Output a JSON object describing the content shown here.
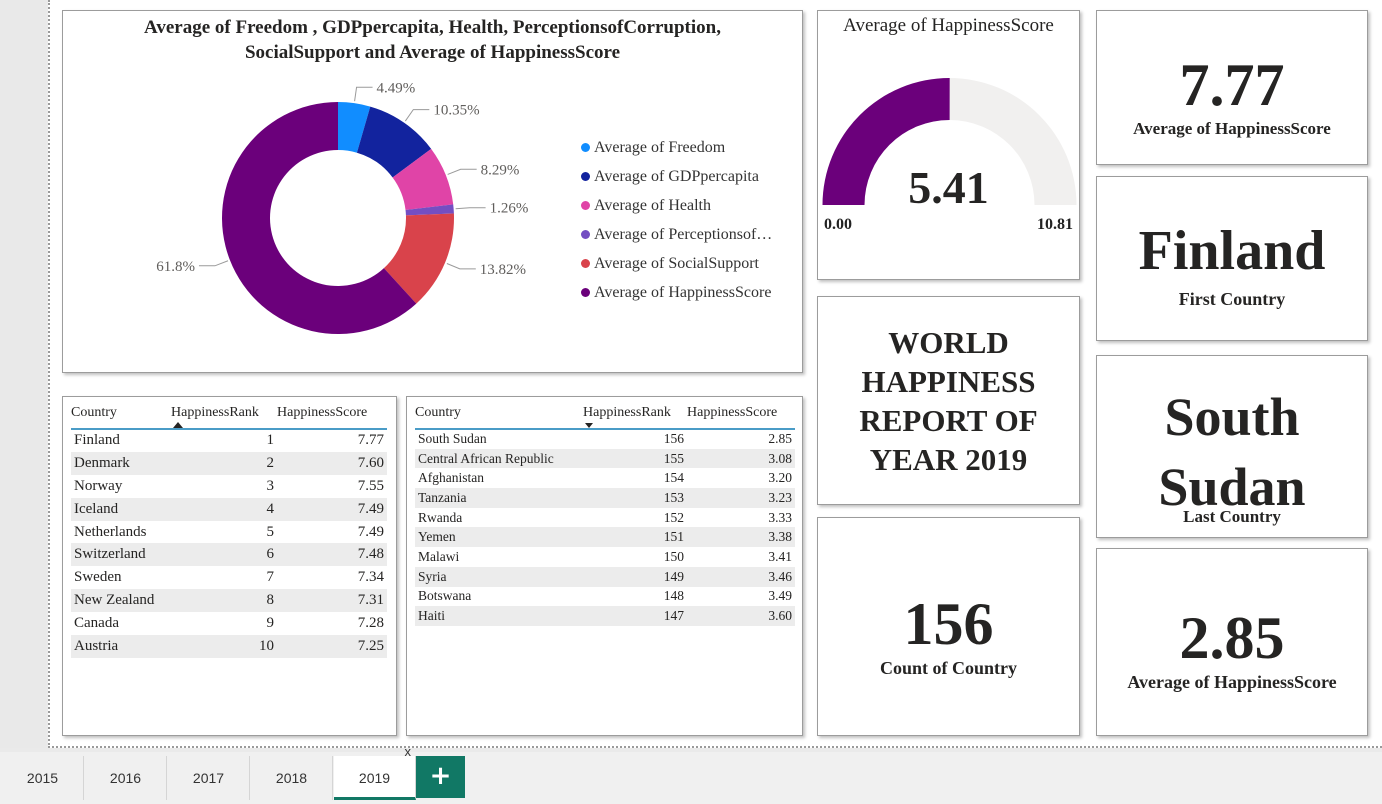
{
  "donut": {
    "title_line1": "Average of Freedom , GDPpercapita, Health, PerceptionsofCorruption,",
    "title_line2": "SocialSupport and Average of HappinessScore",
    "legend": [
      {
        "label": "Average of Freedom",
        "color": "#118dff"
      },
      {
        "label": "Average of GDPpercapita",
        "color": "#12239e"
      },
      {
        "label": "Average of Health",
        "color": "#e044a7"
      },
      {
        "label": "Average of Perceptionsof…",
        "color": "#744ec2"
      },
      {
        "label": "Average of SocialSupport",
        "color": "#d9434b"
      },
      {
        "label": "Average of HappinessScore",
        "color": "#6b007b"
      }
    ]
  },
  "chart_data": {
    "type": "pie",
    "title": "Average of Freedom , GDPpercapita, Health, PerceptionsofCorruption, SocialSupport and Average of HappinessScore",
    "categories": [
      "Average of Freedom",
      "Average of GDPpercapita",
      "Average of Health",
      "Average of Perceptionsof…",
      "Average of SocialSupport",
      "Average of HappinessScore"
    ],
    "values": [
      4.49,
      10.35,
      8.29,
      1.26,
      13.82,
      61.8
    ],
    "labels": [
      "4.49%",
      "10.35%",
      "8.29%",
      "1.26%",
      "13.82%",
      "61.8%"
    ],
    "colors": [
      "#118dff",
      "#12239e",
      "#e044a7",
      "#744ec2",
      "#d9434b",
      "#6b007b"
    ],
    "legend": "right"
  },
  "gauge": {
    "title": "Average of HappinessScore",
    "value_label": "5.41",
    "value": 5.41,
    "min_label": "0.00",
    "max_label": "10.81",
    "min": 0,
    "max": 10.81,
    "fill_color": "#6b007b",
    "track_color": "#f1f0ef"
  },
  "kpis": {
    "top_score": {
      "value": "7.77",
      "label": "Average of HappinessScore"
    },
    "first_country": {
      "value": "Finland",
      "label": "First Country"
    },
    "report_title": {
      "line1": "WORLD",
      "line2": "HAPPINESS",
      "line3": "REPORT OF",
      "line4": "YEAR 2019"
    },
    "last_country": {
      "line1": "South",
      "line2": "Sudan",
      "label": "Last Country"
    },
    "count": {
      "value": "156",
      "label": "Count of Country"
    },
    "bottom_score": {
      "value": "2.85",
      "label": "Average of HappinessScore"
    }
  },
  "top_table": {
    "headers": [
      "Country",
      "HappinessRank",
      "HappinessScore"
    ],
    "rows": [
      [
        "Finland",
        "1",
        "7.77"
      ],
      [
        "Denmark",
        "2",
        "7.60"
      ],
      [
        "Norway",
        "3",
        "7.55"
      ],
      [
        "Iceland",
        "4",
        "7.49"
      ],
      [
        "Netherlands",
        "5",
        "7.49"
      ],
      [
        "Switzerland",
        "6",
        "7.48"
      ],
      [
        "Sweden",
        "7",
        "7.34"
      ],
      [
        "New Zealand",
        "8",
        "7.31"
      ],
      [
        "Canada",
        "9",
        "7.28"
      ],
      [
        "Austria",
        "10",
        "7.25"
      ]
    ]
  },
  "bottom_table": {
    "headers": [
      "Country",
      "HappinessRank",
      "HappinessScore"
    ],
    "rows": [
      [
        "South Sudan",
        "156",
        "2.85"
      ],
      [
        "Central African Republic",
        "155",
        "3.08"
      ],
      [
        "Afghanistan",
        "154",
        "3.20"
      ],
      [
        "Tanzania",
        "153",
        "3.23"
      ],
      [
        "Rwanda",
        "152",
        "3.33"
      ],
      [
        "Yemen",
        "151",
        "3.38"
      ],
      [
        "Malawi",
        "150",
        "3.41"
      ],
      [
        "Syria",
        "149",
        "3.46"
      ],
      [
        "Botswana",
        "148",
        "3.49"
      ],
      [
        "Haiti",
        "147",
        "3.60"
      ]
    ]
  },
  "tabs": {
    "items": [
      "2015",
      "2016",
      "2017",
      "2018",
      "2019"
    ],
    "active": "2019",
    "close": "x",
    "add": "+"
  }
}
